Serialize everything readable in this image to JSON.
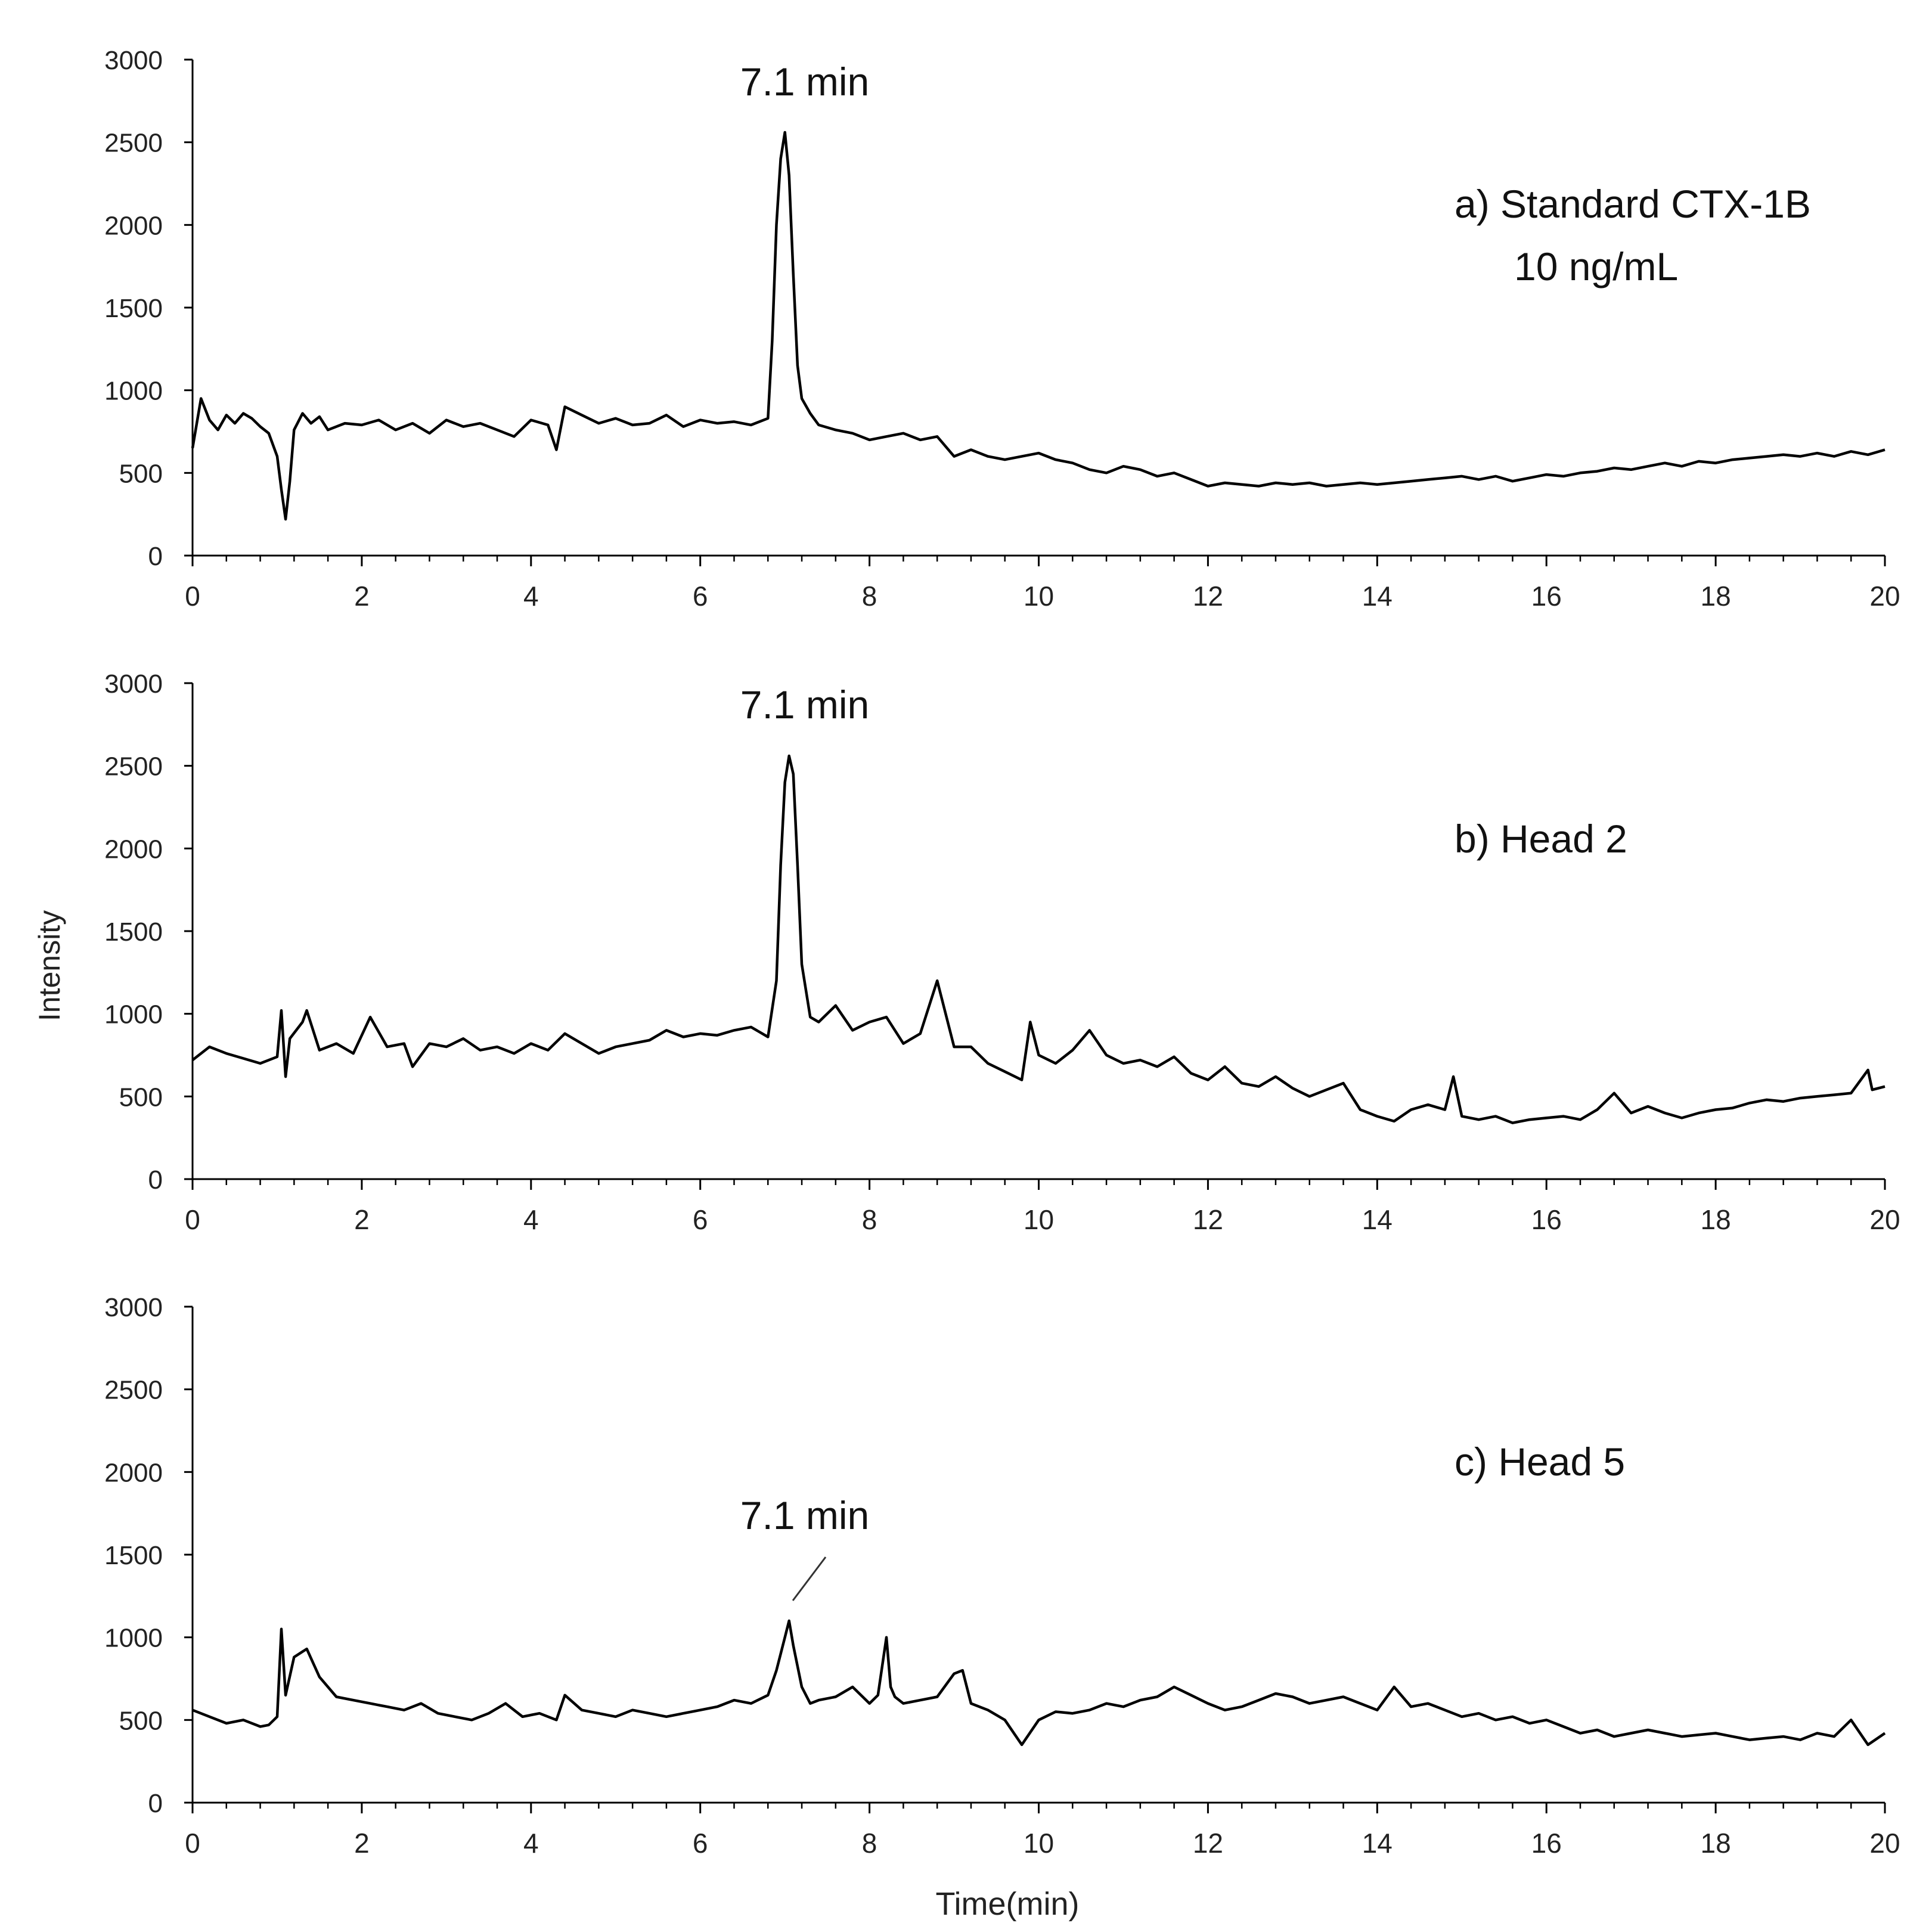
{
  "figure": {
    "ylabel": "Intensity",
    "xlabel": "Time(min)"
  },
  "chart_data": [
    {
      "type": "line",
      "panel_label": "a) Standard CTX-1B",
      "panel_sublabel": "10 ng/mL",
      "peak_label": "7.1 min",
      "xlim": [
        0,
        20
      ],
      "ylim": [
        0,
        3000
      ],
      "xticks": [
        0,
        2,
        4,
        6,
        8,
        10,
        12,
        14,
        16,
        18,
        20
      ],
      "yticks": [
        0,
        500,
        1000,
        1500,
        2000,
        2500,
        3000
      ],
      "grid": false,
      "series": [
        {
          "color": "#000000",
          "x": [
            0,
            0.1,
            0.2,
            0.3,
            0.4,
            0.5,
            0.6,
            0.7,
            0.8,
            0.9,
            1.0,
            1.05,
            1.1,
            1.15,
            1.2,
            1.3,
            1.4,
            1.5,
            1.6,
            1.8,
            2.0,
            2.2,
            2.4,
            2.6,
            2.8,
            3.0,
            3.2,
            3.4,
            3.6,
            3.8,
            4.0,
            4.2,
            4.3,
            4.4,
            4.6,
            4.8,
            5.0,
            5.2,
            5.4,
            5.6,
            5.8,
            6.0,
            6.2,
            6.4,
            6.6,
            6.8,
            6.85,
            6.9,
            6.95,
            7.0,
            7.05,
            7.1,
            7.15,
            7.2,
            7.3,
            7.4,
            7.6,
            7.8,
            8.0,
            8.2,
            8.4,
            8.6,
            8.8,
            9.0,
            9.2,
            9.4,
            9.6,
            9.8,
            10.0,
            10.2,
            10.4,
            10.6,
            10.8,
            11.0,
            11.2,
            11.4,
            11.6,
            11.8,
            12.0,
            12.2,
            12.4,
            12.6,
            12.8,
            13.0,
            13.2,
            13.4,
            13.6,
            13.8,
            14.0,
            14.2,
            14.4,
            14.6,
            14.8,
            15.0,
            15.2,
            15.4,
            15.6,
            15.8,
            16.0,
            16.2,
            16.4,
            16.6,
            16.8,
            17.0,
            17.2,
            17.4,
            17.6,
            17.8,
            18.0,
            18.2,
            18.4,
            18.6,
            18.8,
            19.0,
            19.2,
            19.4,
            19.6,
            19.8,
            20.0
          ],
          "y": [
            650,
            950,
            820,
            760,
            850,
            800,
            860,
            830,
            780,
            740,
            600,
            400,
            220,
            450,
            760,
            860,
            800,
            840,
            760,
            800,
            790,
            820,
            760,
            800,
            740,
            820,
            780,
            800,
            760,
            720,
            820,
            790,
            640,
            900,
            850,
            800,
            830,
            790,
            800,
            850,
            780,
            820,
            800,
            810,
            790,
            830,
            1300,
            2000,
            2400,
            2560,
            2300,
            1700,
            1150,
            950,
            860,
            790,
            760,
            740,
            700,
            720,
            740,
            700,
            720,
            600,
            640,
            600,
            580,
            600,
            620,
            580,
            560,
            520,
            500,
            540,
            520,
            480,
            500,
            460,
            420,
            440,
            430,
            420,
            440,
            430,
            440,
            420,
            430,
            440,
            430,
            440,
            450,
            460,
            470,
            480,
            460,
            480,
            450,
            470,
            490,
            480,
            500,
            510,
            530,
            520,
            540,
            560,
            540,
            570,
            560,
            580,
            590,
            600,
            610,
            600,
            620,
            600,
            630,
            610,
            640
          ]
        }
      ]
    },
    {
      "type": "line",
      "panel_label": "b) Head 2",
      "peak_label": "7.1 min",
      "xlim": [
        0,
        20
      ],
      "ylim": [
        0,
        3000
      ],
      "xticks": [
        0,
        2,
        4,
        6,
        8,
        10,
        12,
        14,
        16,
        18,
        20
      ],
      "yticks": [
        0,
        500,
        1000,
        1500,
        2000,
        2500,
        3000
      ],
      "grid": false,
      "series": [
        {
          "color": "#000000",
          "x": [
            0,
            0.2,
            0.4,
            0.6,
            0.8,
            1.0,
            1.05,
            1.1,
            1.15,
            1.3,
            1.35,
            1.5,
            1.7,
            1.9,
            2.1,
            2.3,
            2.5,
            2.6,
            2.8,
            3.0,
            3.2,
            3.4,
            3.6,
            3.8,
            4.0,
            4.2,
            4.4,
            4.6,
            4.8,
            5.0,
            5.2,
            5.4,
            5.6,
            5.8,
            6.0,
            6.2,
            6.4,
            6.6,
            6.8,
            6.9,
            6.95,
            7.0,
            7.05,
            7.1,
            7.15,
            7.2,
            7.3,
            7.4,
            7.6,
            7.8,
            8.0,
            8.2,
            8.4,
            8.6,
            8.8,
            9.0,
            9.2,
            9.4,
            9.6,
            9.8,
            9.9,
            10.0,
            10.2,
            10.4,
            10.6,
            10.8,
            11.0,
            11.2,
            11.4,
            11.6,
            11.8,
            12.0,
            12.2,
            12.4,
            12.6,
            12.8,
            13.0,
            13.2,
            13.4,
            13.6,
            13.8,
            14.0,
            14.2,
            14.4,
            14.6,
            14.8,
            14.9,
            15.0,
            15.2,
            15.4,
            15.6,
            15.8,
            16.0,
            16.2,
            16.4,
            16.6,
            16.8,
            17.0,
            17.2,
            17.4,
            17.6,
            17.8,
            18.0,
            18.2,
            18.4,
            18.6,
            18.8,
            19.0,
            19.2,
            19.4,
            19.6,
            19.8,
            19.85,
            20.0
          ],
          "y": [
            720,
            800,
            760,
            730,
            700,
            740,
            1020,
            620,
            850,
            950,
            1020,
            780,
            820,
            760,
            980,
            800,
            820,
            680,
            820,
            800,
            850,
            780,
            800,
            760,
            820,
            780,
            880,
            820,
            760,
            800,
            820,
            840,
            900,
            860,
            880,
            870,
            900,
            920,
            860,
            1200,
            1900,
            2400,
            2560,
            2450,
            1900,
            1300,
            980,
            950,
            1050,
            900,
            950,
            980,
            820,
            880,
            1200,
            800,
            800,
            700,
            650,
            600,
            950,
            750,
            700,
            780,
            900,
            750,
            700,
            720,
            680,
            740,
            640,
            600,
            680,
            580,
            560,
            620,
            550,
            500,
            540,
            580,
            420,
            380,
            350,
            420,
            450,
            420,
            620,
            380,
            360,
            380,
            340,
            360,
            370,
            380,
            360,
            420,
            520,
            400,
            440,
            400,
            370,
            400,
            420,
            430,
            460,
            480,
            470,
            490,
            500,
            510,
            520,
            660,
            540,
            560
          ]
        }
      ]
    },
    {
      "type": "line",
      "panel_label": "c) Head 5",
      "peak_label": "7.1 min",
      "xlim": [
        0,
        20
      ],
      "ylim": [
        0,
        3000
      ],
      "xticks": [
        0,
        2,
        4,
        6,
        8,
        10,
        12,
        14,
        16,
        18,
        20
      ],
      "yticks": [
        0,
        500,
        1000,
        1500,
        2000,
        2500,
        3000
      ],
      "grid": false,
      "series": [
        {
          "color": "#000000",
          "x": [
            0,
            0.2,
            0.4,
            0.6,
            0.8,
            0.9,
            1.0,
            1.05,
            1.1,
            1.2,
            1.35,
            1.5,
            1.7,
            1.9,
            2.1,
            2.3,
            2.5,
            2.7,
            2.9,
            3.1,
            3.3,
            3.5,
            3.7,
            3.9,
            4.1,
            4.3,
            4.4,
            4.6,
            4.8,
            5.0,
            5.2,
            5.4,
            5.6,
            5.8,
            6.0,
            6.2,
            6.4,
            6.6,
            6.8,
            6.9,
            7.0,
            7.05,
            7.1,
            7.2,
            7.3,
            7.4,
            7.6,
            7.8,
            8.0,
            8.1,
            8.2,
            8.25,
            8.3,
            8.4,
            8.6,
            8.8,
            9.0,
            9.1,
            9.2,
            9.4,
            9.6,
            9.8,
            10.0,
            10.2,
            10.4,
            10.6,
            10.8,
            11.0,
            11.2,
            11.4,
            11.6,
            11.8,
            12.0,
            12.2,
            12.4,
            12.6,
            12.8,
            13.0,
            13.2,
            13.4,
            13.6,
            13.8,
            14.0,
            14.2,
            14.4,
            14.6,
            14.8,
            15.0,
            15.2,
            15.4,
            15.6,
            15.8,
            16.0,
            16.2,
            16.4,
            16.6,
            16.8,
            17.0,
            17.2,
            17.4,
            17.6,
            17.8,
            18.0,
            18.2,
            18.4,
            18.6,
            18.8,
            19.0,
            19.2,
            19.4,
            19.6,
            19.8,
            20.0
          ],
          "y": [
            560,
            520,
            480,
            500,
            460,
            470,
            520,
            1050,
            650,
            880,
            930,
            760,
            640,
            620,
            600,
            580,
            560,
            600,
            540,
            520,
            500,
            540,
            600,
            520,
            540,
            500,
            650,
            560,
            540,
            520,
            560,
            540,
            520,
            540,
            560,
            580,
            620,
            600,
            650,
            800,
            1000,
            1100,
            950,
            700,
            600,
            620,
            640,
            700,
            600,
            650,
            1000,
            700,
            640,
            600,
            620,
            640,
            780,
            800,
            600,
            560,
            500,
            350,
            500,
            550,
            540,
            560,
            600,
            580,
            620,
            640,
            700,
            650,
            600,
            560,
            580,
            620,
            660,
            640,
            600,
            620,
            640,
            600,
            560,
            700,
            580,
            600,
            560,
            520,
            540,
            500,
            520,
            480,
            500,
            460,
            420,
            440,
            400,
            420,
            440,
            420,
            400,
            410,
            420,
            400,
            380,
            390,
            400,
            380,
            420,
            400,
            500,
            350,
            420
          ]
        }
      ]
    }
  ]
}
